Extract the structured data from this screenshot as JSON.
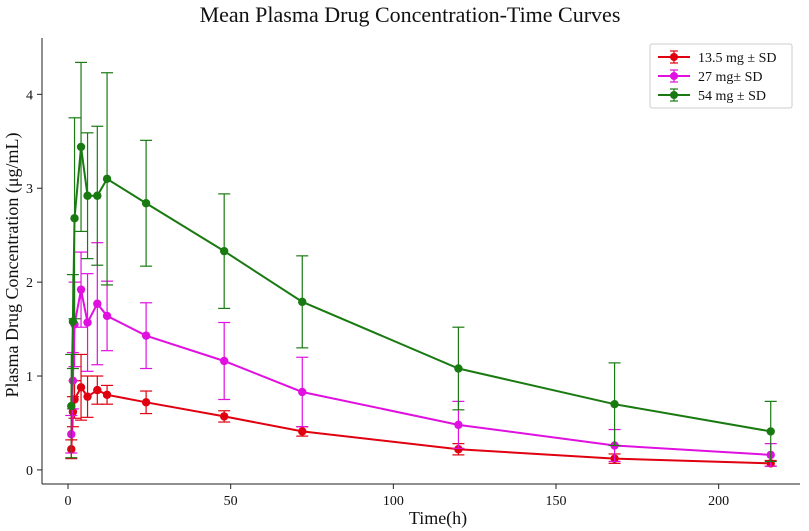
{
  "chart_data": {
    "type": "line",
    "title": "Mean Plasma Drug Concentration-Time Curves",
    "xlabel": "Time(h)",
    "ylabel": "Plasma Drug Concentration (μg/mL)",
    "xlim": [
      -8,
      225
    ],
    "ylim": [
      -0.15,
      4.6
    ],
    "xticks": [
      0,
      50,
      100,
      150,
      200
    ],
    "yticks": [
      0,
      1,
      2,
      3,
      4
    ],
    "x": [
      1,
      1.5,
      2,
      4,
      6,
      9,
      12,
      24,
      48,
      72,
      120,
      168,
      216
    ],
    "legend_position": "top-right",
    "series": [
      {
        "name": "13.5 mg ± SD",
        "color": "#e0000f",
        "values": [
          0.22,
          0.62,
          0.75,
          0.88,
          0.78,
          0.85,
          0.8,
          0.72,
          0.57,
          0.41,
          0.22,
          0.12,
          0.07
        ],
        "errors": [
          0.1,
          0.16,
          0.2,
          0.35,
          0.22,
          0.15,
          0.1,
          0.12,
          0.06,
          0.05,
          0.06,
          0.05,
          0.03
        ]
      },
      {
        "name": "27 mg± SD",
        "color": "#e010e0",
        "values": [
          0.38,
          0.95,
          1.55,
          1.92,
          1.57,
          1.77,
          1.64,
          1.43,
          1.16,
          0.83,
          0.48,
          0.26,
          0.16
        ],
        "errors": [
          0.2,
          0.3,
          0.45,
          0.4,
          0.52,
          0.65,
          0.37,
          0.35,
          0.41,
          0.37,
          0.25,
          0.17,
          0.12
        ]
      },
      {
        "name": "54 mg ± SD",
        "color": "#1a7a12",
        "values": [
          0.68,
          1.58,
          2.68,
          3.44,
          2.92,
          2.92,
          3.1,
          2.84,
          2.33,
          1.79,
          1.08,
          0.7,
          0.41
        ],
        "errors": [
          0.55,
          0.5,
          1.07,
          0.9,
          0.67,
          0.74,
          1.13,
          0.67,
          0.61,
          0.49,
          0.44,
          0.44,
          0.32
        ]
      }
    ]
  }
}
